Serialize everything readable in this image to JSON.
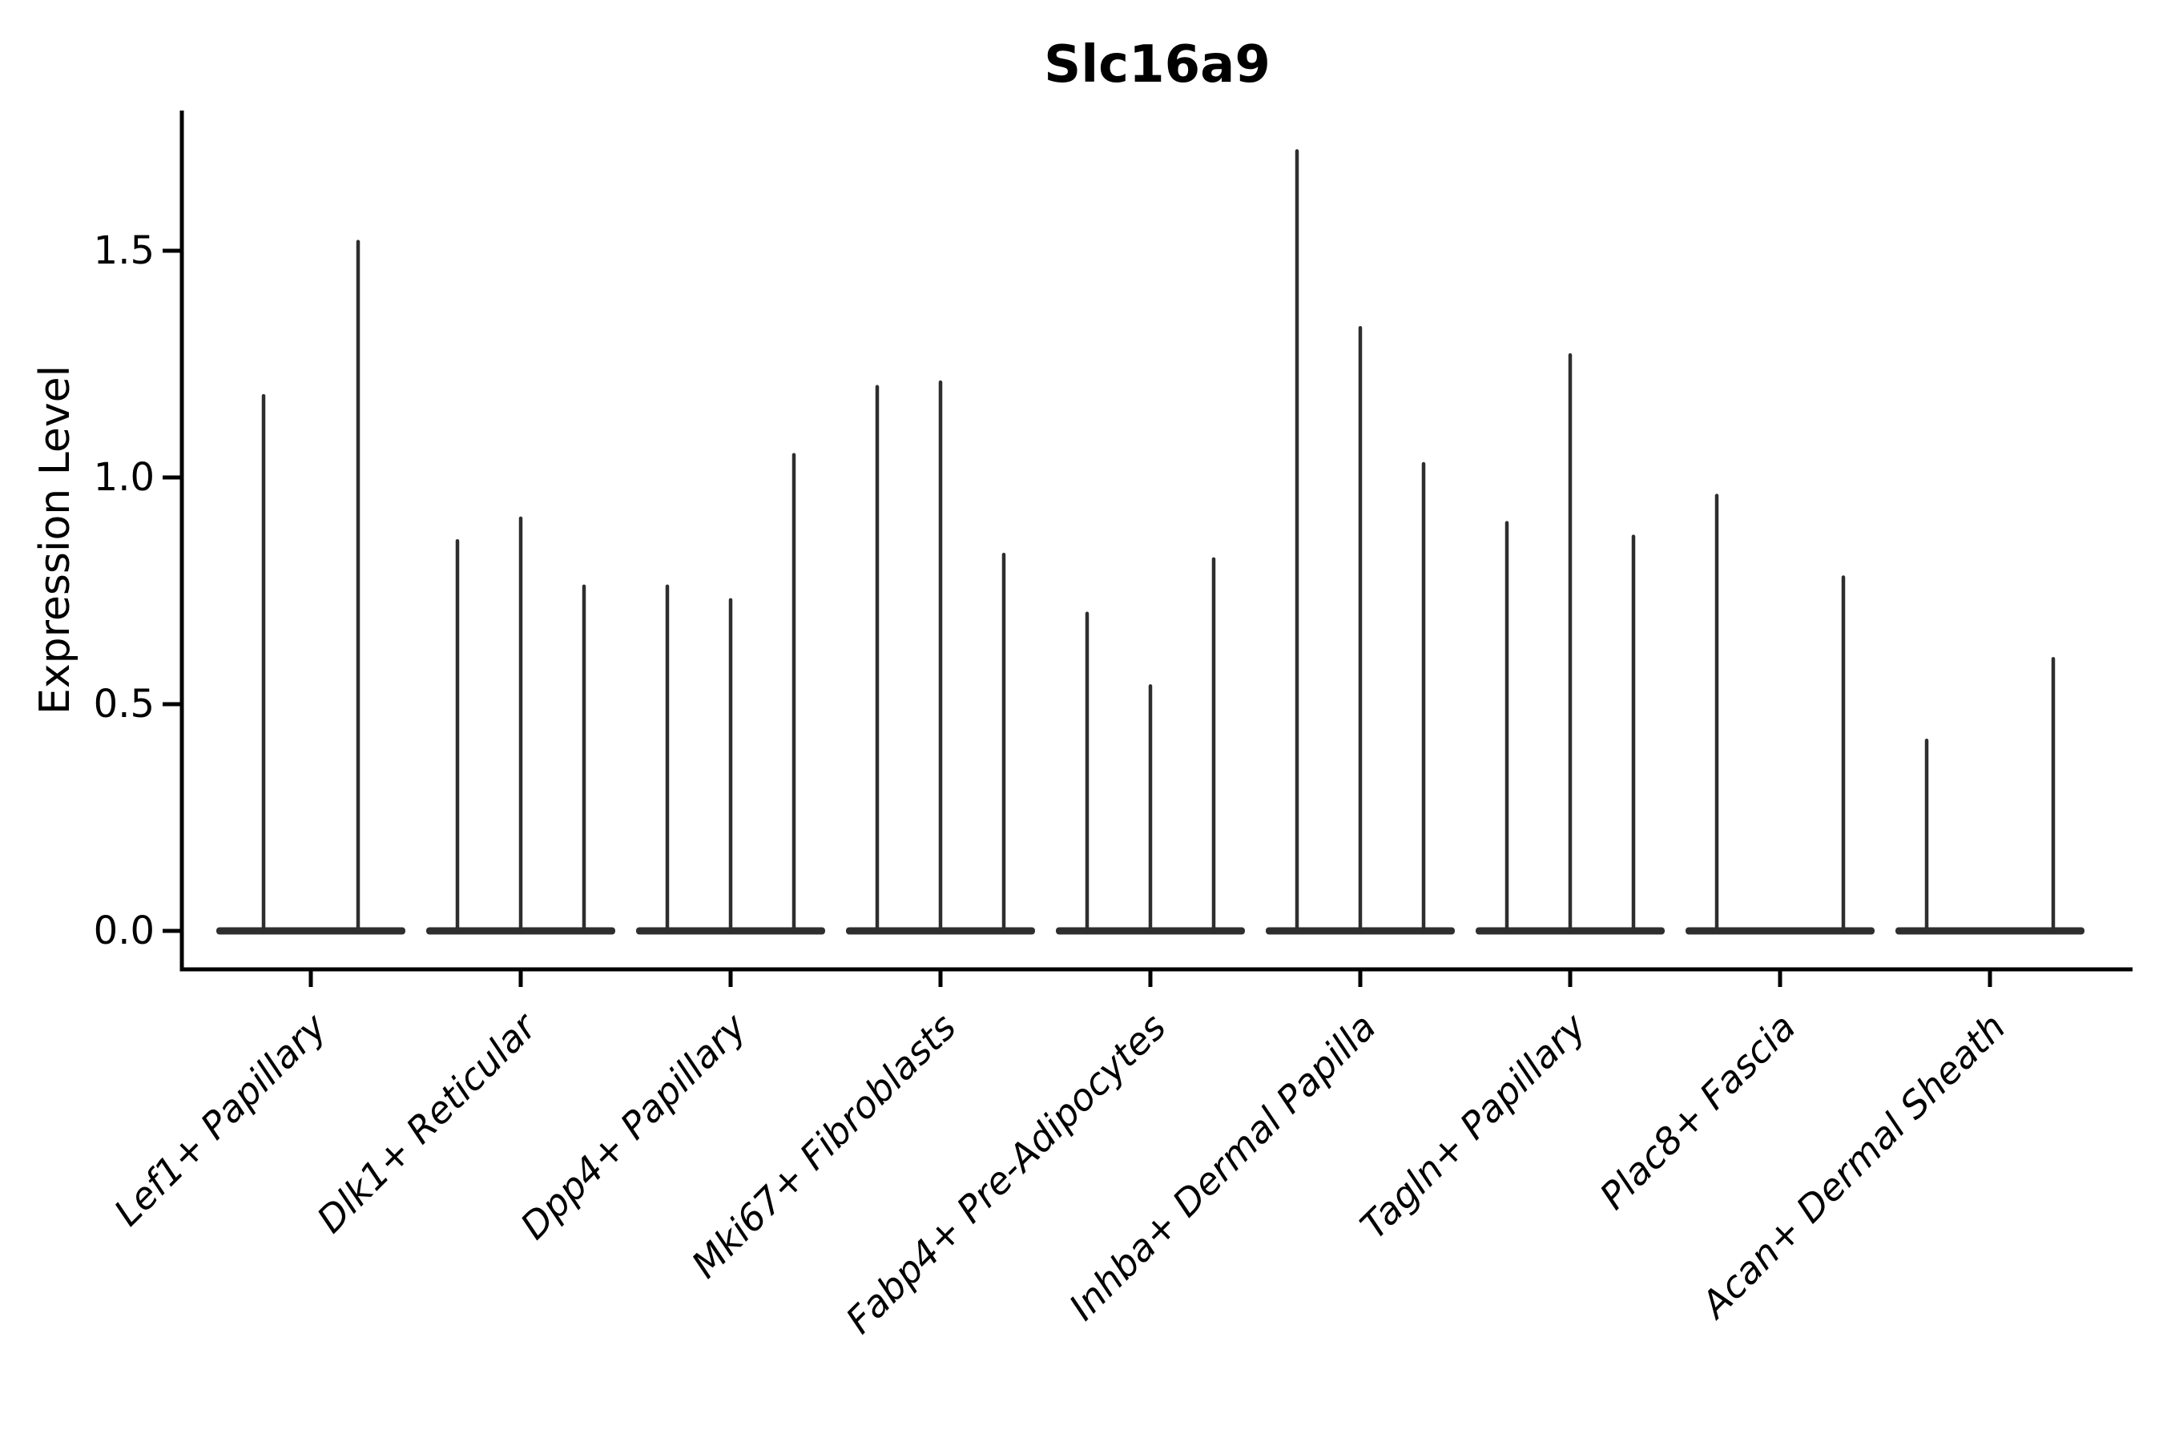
{
  "figure": {
    "title": "Slc16a9",
    "y_axis_label": "Expression Level"
  },
  "chart_data": {
    "type": "violin",
    "title": "Slc16a9",
    "xlabel": "",
    "ylabel": "Expression Level",
    "ylim": [
      0,
      1.81
    ],
    "yticks": [
      0,
      0.5,
      1.0,
      1.5
    ],
    "ytick_labels": [
      "0.0",
      "0.5",
      "1.0",
      "1.5"
    ],
    "grid": false,
    "legend": "none",
    "style_note": "thin dark-gray violins collapsed into a flat band at 0 with narrow spikes up to each violin's maximum; 2-3 violins per category; x tick labels italic, rotated 45 degrees",
    "categories": [
      "Lef1+ Papillary",
      "Dlk1+ Reticular",
      "Dpp4+ Papillary",
      "Mki67+ Fibroblasts",
      "Fabp4+ Pre-Adipocytes",
      "Inhba+ Dermal Papilla",
      "Tagln+ Papillary",
      "Plac8+ Fascia",
      "Acan+ Dermal Sheath"
    ],
    "groups": [
      {
        "category": "Lef1+ Papillary",
        "spike_maxima": [
          1.18,
          1.52
        ]
      },
      {
        "category": "Dlk1+ Reticular",
        "spike_maxima": [
          0.86,
          0.91,
          0.76
        ]
      },
      {
        "category": "Dpp4+ Papillary",
        "spike_maxima": [
          0.76,
          0.73,
          1.05
        ]
      },
      {
        "category": "Mki67+ Fibroblasts",
        "spike_maxima": [
          1.2,
          1.21,
          0.83
        ]
      },
      {
        "category": "Fabp4+ Pre-Adipocytes",
        "spike_maxima": [
          0.7,
          0.54,
          0.82
        ]
      },
      {
        "category": "Inhba+ Dermal Papilla",
        "spike_maxima": [
          1.72,
          1.33,
          1.03
        ]
      },
      {
        "category": "Tagln+ Papillary",
        "spike_maxima": [
          0.9,
          1.27,
          0.87
        ]
      },
      {
        "category": "Plac8+ Fascia",
        "spike_maxima": [
          0.96,
          null,
          0.78
        ]
      },
      {
        "category": "Acan+ Dermal Sheath",
        "spike_maxima": [
          0.42,
          null,
          0.6
        ]
      }
    ],
    "colors": {
      "violin": "#2e2e2e",
      "axis": "#000000",
      "text": "#000000",
      "background": "#ffffff"
    }
  }
}
